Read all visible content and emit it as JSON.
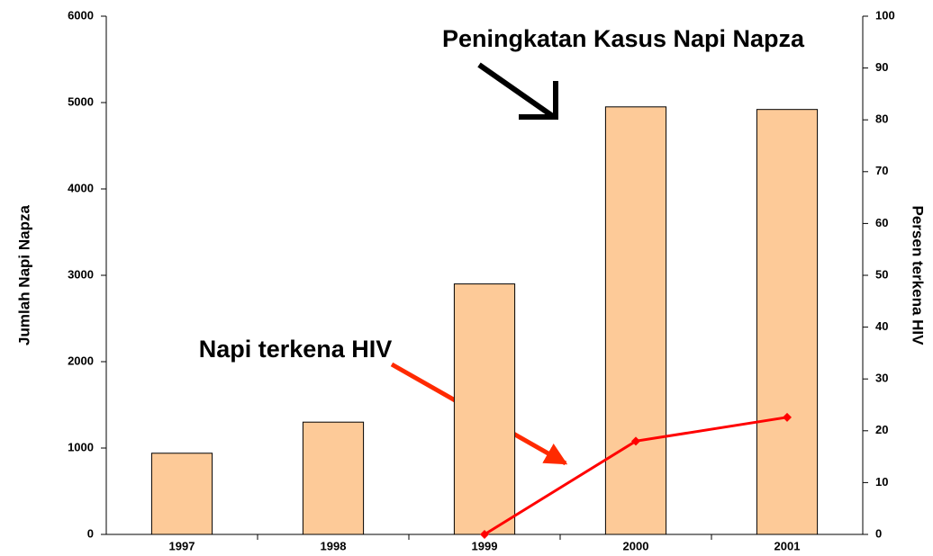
{
  "chart_data": {
    "type": "bar",
    "categories": [
      "1997",
      "1998",
      "1999",
      "2000",
      "2001"
    ],
    "y_label": "Jumlah Napi Napza",
    "y2_label": "Persen terkena HIV",
    "annotations": [
      "Peningkatan Kasus Napi Napza",
      "Napi terkena HIV"
    ],
    "series": [
      {
        "name": "Jumlah Napi Napza",
        "type": "bar",
        "color": "#fdca98",
        "values": [
          940,
          1300,
          2900,
          4950,
          4920
        ]
      },
      {
        "name": "Persen terkena HIV",
        "type": "line",
        "axis": "y2",
        "color": "#ff0000",
        "values": [
          null,
          null,
          0,
          18,
          22.6
        ]
      }
    ],
    "ylim": [
      0,
      6000
    ],
    "yticks": [
      0,
      1000,
      2000,
      3000,
      4000,
      5000,
      6000
    ],
    "y2lim": [
      0,
      100
    ],
    "y2ticks": [
      0,
      10,
      20,
      30,
      40,
      50,
      60,
      70,
      80,
      90,
      100
    ],
    "grid": false
  }
}
